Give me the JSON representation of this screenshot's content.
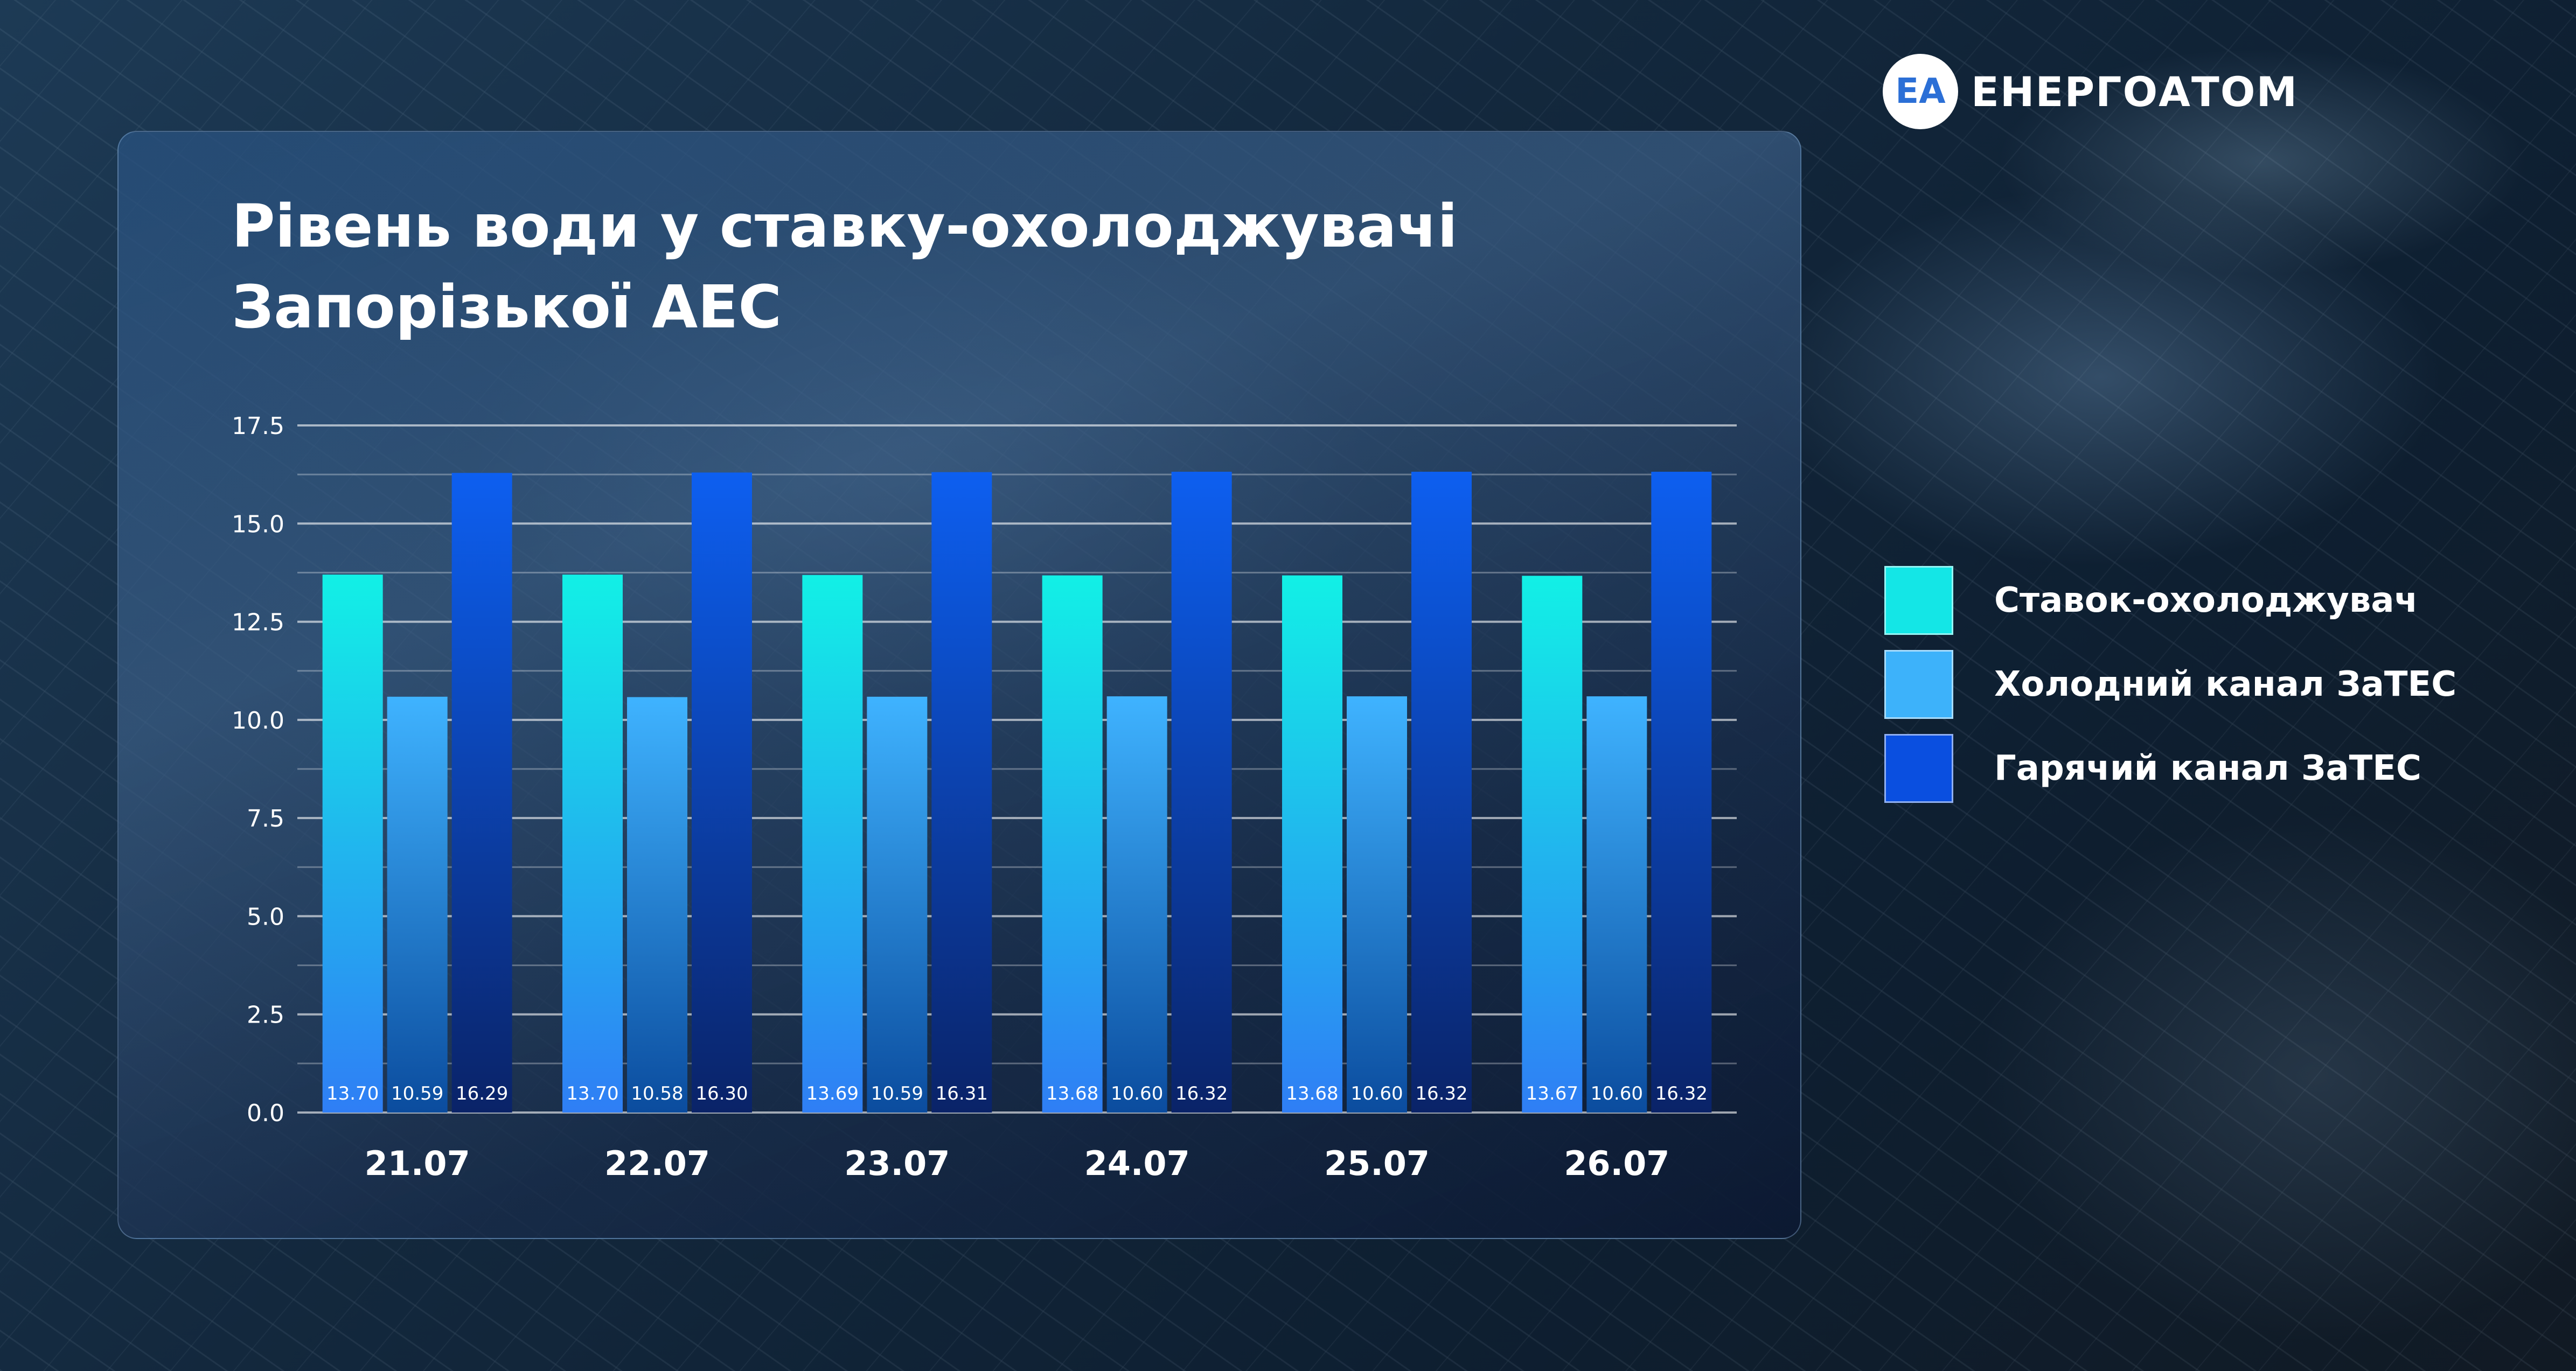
{
  "brand": {
    "name": "ЕНЕРГОАТОМ",
    "mark": "EA"
  },
  "title": {
    "line1": "Рівень води у ставку-охолоджувачі",
    "line2": "Запорізької АЕС"
  },
  "colors": {
    "series1_top": "#12f0e6",
    "series1_bottom": "#2f7ef5",
    "series2_top": "#3fb3ff",
    "series2_bottom": "#0b4c9e",
    "series3_top": "#0d5ff0",
    "series3_bottom": "#0a2368",
    "series1_legend": "#14e6e6",
    "series2_legend": "#3db2fa",
    "series3_legend": "#0a4fe0"
  },
  "chart_data": {
    "type": "bar",
    "title": "Рівень води у ставку-охолоджувачі Запорізької АЕС",
    "categories": [
      "21.07",
      "22.07",
      "23.07",
      "24.07",
      "25.07",
      "26.07"
    ],
    "series": [
      {
        "name": "Ставок-охолоджувач",
        "values": [
          13.7,
          13.7,
          13.69,
          13.68,
          13.68,
          13.67
        ],
        "labels": [
          "13.70",
          "13.70",
          "13.69",
          "13.68",
          "13.68",
          "13.67"
        ]
      },
      {
        "name": "Холодний канал ЗаТЕС",
        "values": [
          10.59,
          10.58,
          10.59,
          10.6,
          10.6,
          10.6
        ],
        "labels": [
          "10.59",
          "10.58",
          "10.59",
          "10.60",
          "10.60",
          "10.60"
        ]
      },
      {
        "name": "Гарячий канал ЗаТЕС",
        "values": [
          16.29,
          16.3,
          16.31,
          16.32,
          16.32,
          16.32
        ],
        "labels": [
          "16.29",
          "16.30",
          "16.31",
          "16.32",
          "16.32",
          "16.32"
        ]
      }
    ],
    "ylim": [
      0,
      17.5
    ],
    "yticks": [
      "0.0",
      "2.5",
      "5.0",
      "7.5",
      "10.0",
      "12.5",
      "15.0",
      "17.5"
    ],
    "grid": true,
    "legend_position": "right"
  }
}
